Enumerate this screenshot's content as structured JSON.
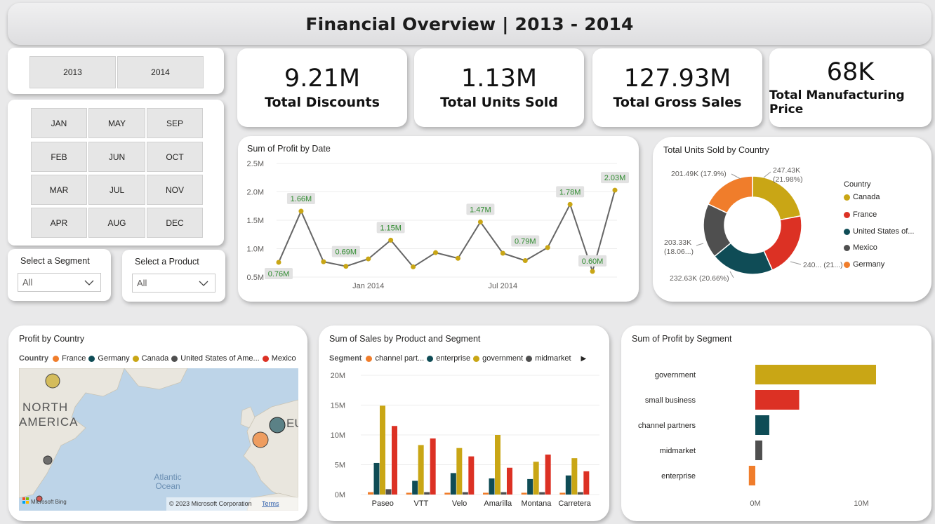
{
  "header": {
    "title": "Financial Overview | 2013 - 2014"
  },
  "years": [
    "2013",
    "2014"
  ],
  "months": [
    [
      "JAN",
      "MAY",
      "SEP"
    ],
    [
      "FEB",
      "JUN",
      "OCT"
    ],
    [
      "MAR",
      "JUL",
      "NOV"
    ],
    [
      "APR",
      "AUG",
      "DEC"
    ]
  ],
  "segment_filter": {
    "label": "Select a Segment",
    "value": "All"
  },
  "product_filter": {
    "label": "Select a Product",
    "value": "All"
  },
  "kpis": [
    {
      "value": "9.21M",
      "label": "Total Discounts"
    },
    {
      "value": "1.13M",
      "label": "Total Units Sold"
    },
    {
      "value": "127.93M",
      "label": "Total Gross Sales"
    },
    {
      "value": "68K",
      "label": "Total Manufacturing Price"
    }
  ],
  "colors": {
    "yellow": "#c9a615",
    "red": "#dc3124",
    "teal": "#0f4c56",
    "gray": "#4f4f4f",
    "orange": "#f07d2b",
    "label_green": "#2e8b2e"
  },
  "profit_by_date": {
    "title": "Sum of Profit by Date",
    "y_ticks": [
      "2.5M",
      "2.0M",
      "1.5M",
      "1.0M",
      "0.5M"
    ],
    "x_ticks": [
      "Jan 2014",
      "Jul 2014"
    ],
    "data_labels": [
      "0.76M",
      "1.66M",
      "0.69M",
      "1.15M",
      "1.47M",
      "0.79M",
      "1.78M",
      "0.60M",
      "2.03M"
    ]
  },
  "units_by_country": {
    "title": "Total Units Sold by Country",
    "legend_title": "Country",
    "legend": [
      "Canada",
      "France",
      "United States of...",
      "Mexico",
      "Germany"
    ],
    "slice_labels": {
      "canada_a": "247.43K",
      "canada_b": "(21.98%)",
      "france": "240... (21...)",
      "usa": "232.63K (20.66%)",
      "mexico_a": "203.33K",
      "mexico_b": "(18.06...)",
      "germany": "201.49K (17.9%)"
    }
  },
  "profit_by_country": {
    "title": "Profit by Country",
    "legend_title": "Country",
    "legend": [
      "France",
      "Germany",
      "Canada",
      "United States of Ame...",
      "Mexico"
    ],
    "map_labels": {
      "north": "NORTH",
      "america": "AMERICA",
      "ocean1": "Atlantic",
      "ocean2": "Ocean",
      "eu": "EU",
      "copyright": "© 2023 Microsoft Corporation",
      "terms": "Terms",
      "bing": "Microsoft Bing"
    }
  },
  "sales_by_product": {
    "title": "Sum of  Sales by Product and Segment",
    "legend_title": "Segment",
    "legend": [
      "channel part...",
      "enterprise",
      "government",
      "midmarket"
    ],
    "y_ticks": [
      "20M",
      "15M",
      "10M",
      "5M",
      "0M"
    ]
  },
  "profit_by_segment": {
    "title": "Sum of Profit by Segment",
    "x_ticks": [
      "0M",
      "10M"
    ]
  },
  "chart_data": [
    {
      "type": "line",
      "title": "Sum of Profit by Date",
      "x": [
        "2013-09",
        "2013-10",
        "2013-11",
        "2013-12",
        "2014-01",
        "2014-02",
        "2014-03",
        "2014-04",
        "2014-05",
        "2014-06",
        "2014-07",
        "2014-08",
        "2014-09",
        "2014-10",
        "2014-11",
        "2014-12"
      ],
      "x_ticks": [
        "Jan 2014",
        "Jul 2014"
      ],
      "series": [
        {
          "values": [
            0.76,
            1.66,
            0.77,
            0.69,
            0.82,
            1.15,
            0.68,
            0.93,
            0.83,
            1.47,
            0.92,
            0.79,
            1.02,
            1.78,
            0.6,
            2.03
          ]
        }
      ],
      "ylim": [
        0.5,
        2.5
      ],
      "unit": "M"
    },
    {
      "type": "pie",
      "title": "Total Units Sold by Country",
      "categories": [
        "Canada",
        "France",
        "United States of...",
        "Mexico",
        "Germany"
      ],
      "values": [
        247.43,
        240.93,
        232.63,
        203.33,
        201.49
      ],
      "unit": "K",
      "percents": [
        21.98,
        21.4,
        20.66,
        18.06,
        17.9
      ]
    },
    {
      "type": "bar",
      "title": "Sum of  Sales by Product and Segment",
      "categories": [
        "Paseo",
        "VTT",
        "Velo",
        "Amarilla",
        "Montana",
        "Carretera"
      ],
      "series": [
        {
          "name": "channel part...",
          "values": [
            0.4,
            0.3,
            0.3,
            0.3,
            0.3,
            0.3
          ]
        },
        {
          "name": "enterprise",
          "values": [
            5.3,
            2.3,
            3.6,
            2.7,
            2.6,
            3.2
          ]
        },
        {
          "name": "government",
          "values": [
            14.9,
            8.3,
            7.8,
            10.0,
            5.5,
            6.1
          ]
        },
        {
          "name": "midmarket",
          "values": [
            0.9,
            0.4,
            0.4,
            0.4,
            0.4,
            0.4
          ]
        },
        {
          "name": "small business",
          "values": [
            11.5,
            9.4,
            6.4,
            4.5,
            6.7,
            3.9
          ]
        }
      ],
      "ylim": [
        0,
        20
      ],
      "unit": "M"
    },
    {
      "type": "bar",
      "orientation": "horizontal",
      "title": "Sum of Profit by Segment",
      "categories": [
        "government",
        "small business",
        "channel partners",
        "midmarket",
        "enterprise"
      ],
      "values": [
        11.39,
        4.14,
        1.32,
        0.66,
        -0.61
      ],
      "xlim": [
        -1,
        14
      ],
      "unit": "M"
    }
  ]
}
